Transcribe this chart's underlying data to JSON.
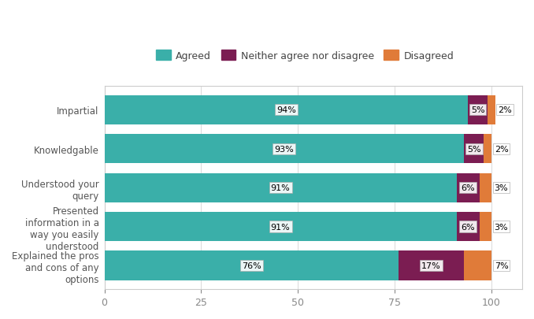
{
  "categories": [
    "Impartial",
    "Knowledgable",
    "Understood your\nquery",
    "Presented\ninformation in a\nway you easily\nunderstood",
    "Explained the pros\nand cons of any\noptions"
  ],
  "agreed": [
    94,
    93,
    91,
    91,
    76
  ],
  "neither": [
    5,
    5,
    6,
    6,
    17
  ],
  "disagreed": [
    2,
    2,
    3,
    3,
    7
  ],
  "agreed_color": "#3aafa9",
  "neither_color": "#7b1d52",
  "disagreed_color": "#e07b39",
  "legend_labels": [
    "Agreed",
    "Neither agree nor disagree",
    "Disagreed"
  ],
  "xlim": [
    0,
    108
  ],
  "xticks": [
    0,
    25,
    50,
    75,
    100
  ],
  "bar_height": 0.75,
  "background_color": "#ffffff",
  "plot_bg_color": "#ffffff",
  "label_fontsize": 8.5,
  "tick_fontsize": 9,
  "legend_fontsize": 9,
  "value_fontsize": 8
}
